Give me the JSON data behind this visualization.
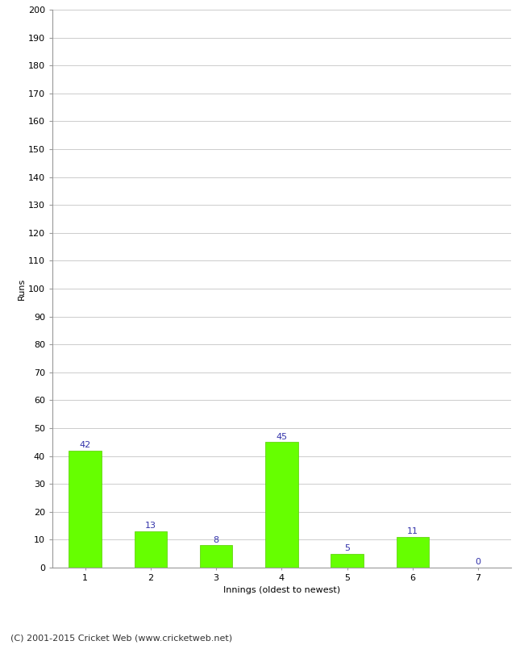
{
  "categories": [
    "1",
    "2",
    "3",
    "4",
    "5",
    "6",
    "7"
  ],
  "values": [
    42,
    13,
    8,
    45,
    5,
    11,
    0
  ],
  "bar_color": "#66ff00",
  "bar_edge_color": "#55cc00",
  "value_label_color": "#3333aa",
  "xlabel": "Innings (oldest to newest)",
  "ylabel": "Runs",
  "ylim": [
    0,
    200
  ],
  "yticks": [
    0,
    10,
    20,
    30,
    40,
    50,
    60,
    70,
    80,
    90,
    100,
    110,
    120,
    130,
    140,
    150,
    160,
    170,
    180,
    190,
    200
  ],
  "background_color": "#ffffff",
  "grid_color": "#cccccc",
  "footer_text": "(C) 2001-2015 Cricket Web (www.cricketweb.net)",
  "value_label_fontsize": 8,
  "axis_label_fontsize": 8,
  "tick_label_fontsize": 8,
  "footer_fontsize": 8
}
